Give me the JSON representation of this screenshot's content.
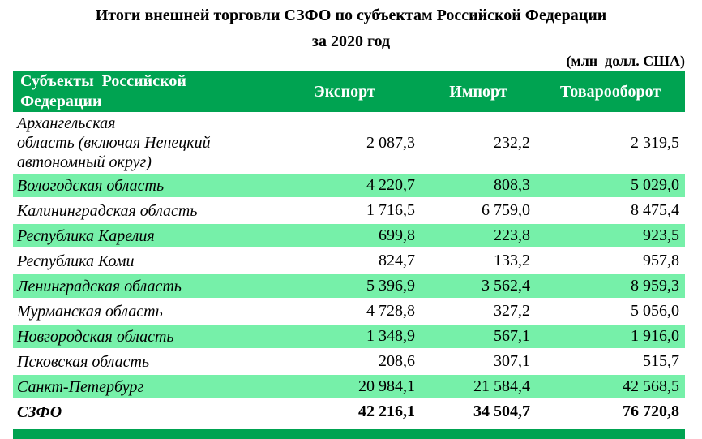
{
  "title": {
    "line1": "Итоги внешней торговли СЗФО по субъектам Российской Федерации",
    "line2": "за 2020 год"
  },
  "units_note": "(млн  долл. США)",
  "colors": {
    "header_green": "#00A351",
    "row_mint_green": "#76F0A9",
    "bottom_bar_green": "#00A351",
    "header_text": "#FFFFFF",
    "body_text": "#000000"
  },
  "table": {
    "columns": {
      "subject": "Субъекты  Российской\nФедерации",
      "export": "Экспорт",
      "import": "Импорт",
      "turnover": "Товарооборот"
    },
    "rows": [
      {
        "name": "Архангельская\nобласть (включая Ненецкий\nавтономный округ)",
        "export": "2 087,3",
        "import": "232,2",
        "turnover": "2 319,5"
      },
      {
        "name": "Вологодская область",
        "export": "4 220,7",
        "import": "808,3",
        "turnover": "5 029,0"
      },
      {
        "name": "Калининградская область",
        "export": "1 716,5",
        "import": "6 759,0",
        "turnover": "8 475,4"
      },
      {
        "name": "Республика Карелия",
        "export": "699,8",
        "import": "223,8",
        "turnover": "923,5"
      },
      {
        "name": "Республика Коми",
        "export": "824,7",
        "import": "133,2",
        "turnover": "957,8"
      },
      {
        "name": "Ленинградская область",
        "export": "5 396,9",
        "import": "3 562,4",
        "turnover": "8 959,3"
      },
      {
        "name": "Мурманская область",
        "export": "4 728,8",
        "import": "327,2",
        "turnover": "5 056,0"
      },
      {
        "name": "Новгородская область",
        "export": "1 348,9",
        "import": "567,1",
        "turnover": "1 916,0"
      },
      {
        "name": "Псковская область",
        "export": "208,6",
        "import": "307,1",
        "turnover": "515,7"
      },
      {
        "name": "Санкт-Петербург",
        "export": "20 984,1",
        "import": "21 584,4",
        "turnover": "42 568,5"
      }
    ],
    "total": {
      "name": "СЗФО",
      "export": "42 216,1",
      "import": "34 504,7",
      "turnover": "76 720,8"
    }
  }
}
